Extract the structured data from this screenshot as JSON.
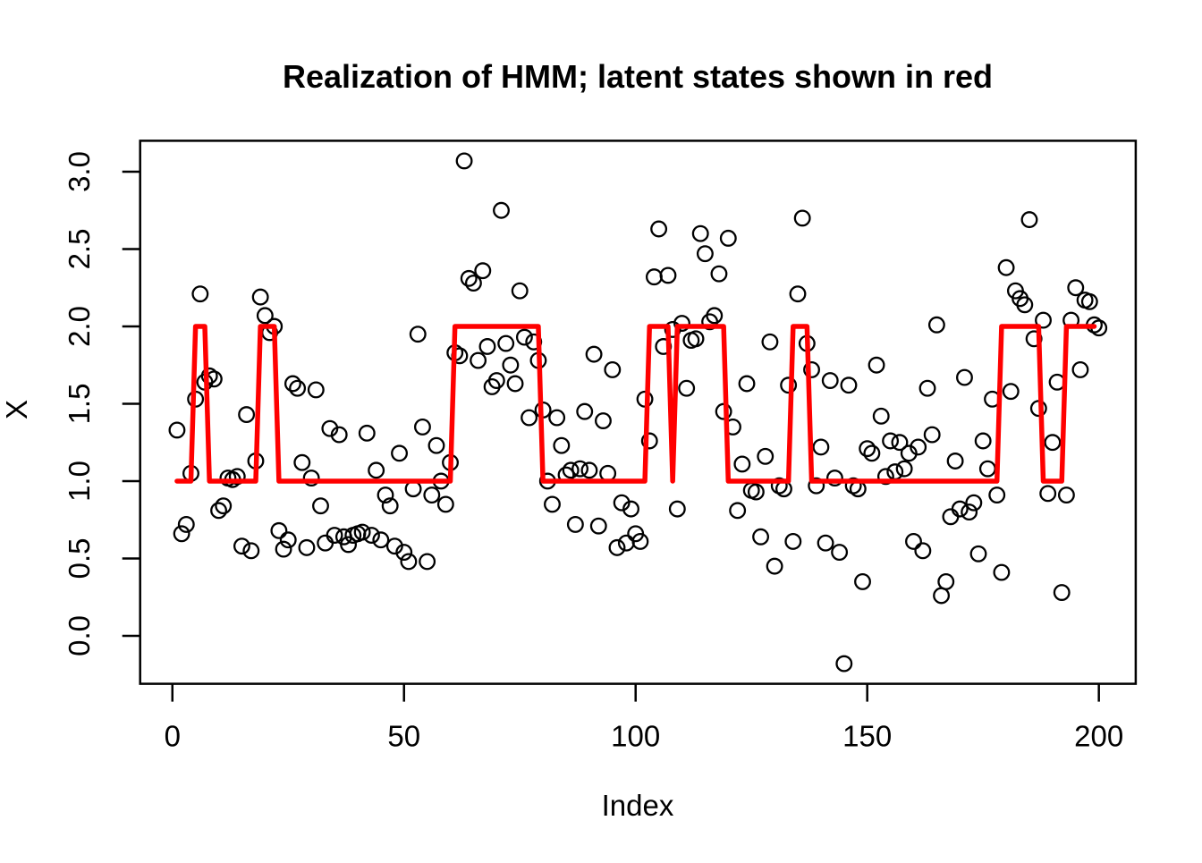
{
  "title": "Realization of HMM; latent states shown in red",
  "colors": {
    "points": "#000000",
    "state_line": "#ff0000",
    "background": "#ffffff",
    "axis": "#000000"
  },
  "chart_data": {
    "type": "scatter",
    "title": "Realization of HMM; latent states shown in red",
    "xlabel": "Index",
    "ylabel": "X",
    "x_ticks": [
      0,
      50,
      100,
      150,
      200
    ],
    "x_tick_labels": [
      "0",
      "50",
      "100",
      "150",
      "200"
    ],
    "y_ticks": [
      0.0,
      0.5,
      1.0,
      1.5,
      2.0,
      2.5,
      3.0
    ],
    "y_tick_labels": [
      "0.0",
      "0.5",
      "1.0",
      "1.5",
      "2.0",
      "2.5",
      "3.0"
    ],
    "xlim": [
      -6.96,
      207.96
    ],
    "ylim": [
      -0.31,
      3.2
    ],
    "grid": false,
    "legend": "none",
    "index_range": [
      1,
      200
    ],
    "series": [
      {
        "name": "observations",
        "marker": "open-circle",
        "color": "#000000",
        "y": [
          1.33,
          0.66,
          0.72,
          1.05,
          1.53,
          2.21,
          1.64,
          1.68,
          1.66,
          0.81,
          0.84,
          1.02,
          1.01,
          1.03,
          0.58,
          1.43,
          0.55,
          1.13,
          2.19,
          2.07,
          1.96,
          2.0,
          0.68,
          0.56,
          0.62,
          1.63,
          1.6,
          1.12,
          0.57,
          1.02,
          1.59,
          0.84,
          0.6,
          1.34,
          0.65,
          1.3,
          0.64,
          0.59,
          0.65,
          0.66,
          0.67,
          1.31,
          0.65,
          1.07,
          0.62,
          0.91,
          0.84,
          0.58,
          1.18,
          0.54,
          0.48,
          0.95,
          1.95,
          1.35,
          0.48,
          0.91,
          1.23,
          1.0,
          0.85,
          1.12,
          1.83,
          1.81,
          3.07,
          2.31,
          2.28,
          1.78,
          2.36,
          1.87,
          1.61,
          1.65,
          2.75,
          1.89,
          1.75,
          1.63,
          2.23,
          1.93,
          1.41,
          1.9,
          1.78,
          1.46,
          1.0,
          0.85,
          1.41,
          1.23,
          1.04,
          1.07,
          0.72,
          1.08,
          1.45,
          1.07,
          1.82,
          0.71,
          1.39,
          1.05,
          1.72,
          0.57,
          0.86,
          0.6,
          0.82,
          0.66,
          0.61,
          1.53,
          1.26,
          2.32,
          2.63,
          1.87,
          2.33,
          1.98,
          0.82,
          2.02,
          1.6,
          1.91,
          1.92,
          2.6,
          2.47,
          2.03,
          2.07,
          2.34,
          1.45,
          2.57,
          1.35,
          0.81,
          1.11,
          1.63,
          0.94,
          0.93,
          0.64,
          1.16,
          1.9,
          0.45,
          0.97,
          0.95,
          1.62,
          0.61,
          2.21,
          2.7,
          1.89,
          1.72,
          0.97,
          1.22,
          0.6,
          1.65,
          1.02,
          0.54,
          -0.18,
          1.62,
          0.97,
          0.95,
          0.35,
          1.21,
          1.18,
          1.75,
          1.42,
          1.03,
          1.26,
          1.06,
          1.25,
          1.08,
          1.18,
          0.61,
          1.22,
          0.55,
          1.6,
          1.3,
          2.01,
          0.26,
          0.35,
          0.77,
          1.13,
          0.82,
          1.67,
          0.8,
          0.86,
          0.53,
          1.26,
          1.08,
          1.53,
          0.91,
          0.41,
          2.38,
          1.58,
          2.23,
          2.18,
          2.14,
          2.69,
          1.92,
          1.47,
          2.04,
          0.92,
          1.25,
          1.64,
          0.28,
          0.91,
          2.04,
          2.25,
          1.72,
          2.17,
          2.16,
          2.01,
          1.99
        ]
      },
      {
        "name": "latent-states",
        "marker": "line",
        "color": "#ff0000",
        "line_width": 5.5,
        "y": [
          1,
          1,
          1,
          1,
          2,
          2,
          2,
          1,
          1,
          1,
          1,
          1,
          1,
          1,
          1,
          1,
          1,
          1,
          2,
          2,
          2,
          2,
          1,
          1,
          1,
          1,
          1,
          1,
          1,
          1,
          1,
          1,
          1,
          1,
          1,
          1,
          1,
          1,
          1,
          1,
          1,
          1,
          1,
          1,
          1,
          1,
          1,
          1,
          1,
          1,
          1,
          1,
          1,
          1,
          1,
          1,
          1,
          1,
          1,
          1,
          2,
          2,
          2,
          2,
          2,
          2,
          2,
          2,
          2,
          2,
          2,
          2,
          2,
          2,
          2,
          2,
          2,
          2,
          2,
          1,
          1,
          1,
          1,
          1,
          1,
          1,
          1,
          1,
          1,
          1,
          1,
          1,
          1,
          1,
          1,
          1,
          1,
          1,
          1,
          1,
          1,
          1,
          2,
          2,
          2,
          2,
          2,
          1,
          2,
          2,
          2,
          2,
          2,
          2,
          2,
          2,
          2,
          2,
          2,
          1,
          1,
          1,
          1,
          1,
          1,
          1,
          1,
          1,
          1,
          1,
          1,
          1,
          1,
          2,
          2,
          2,
          2,
          1,
          1,
          1,
          1,
          1,
          1,
          1,
          1,
          1,
          1,
          1,
          1,
          1,
          1,
          1,
          1,
          1,
          1,
          1,
          1,
          1,
          1,
          1,
          1,
          1,
          1,
          1,
          1,
          1,
          1,
          1,
          1,
          1,
          1,
          1,
          1,
          1,
          1,
          1,
          1,
          1,
          2,
          2,
          2,
          2,
          2,
          2,
          2,
          2,
          2,
          1,
          1,
          1,
          1,
          1,
          2,
          2,
          2,
          2,
          2,
          2,
          2
        ]
      }
    ]
  }
}
